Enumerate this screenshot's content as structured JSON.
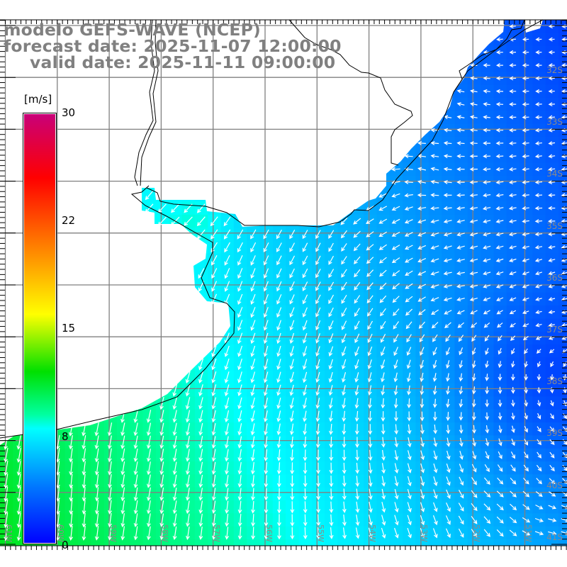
{
  "title": {
    "line1": "modelo GEFS-WAVE (NCEP)",
    "line2": "forecast date: 2025-11-07 12:00:00",
    "line3": "valid date: 2025-11-11 09:00:00"
  },
  "colorbar": {
    "unit": "[m/s]",
    "labels": [
      "30",
      "22",
      "15",
      "8",
      "0"
    ],
    "min": 0,
    "max": 30,
    "stops": [
      {
        "v": 0,
        "color": "#0000ff"
      },
      {
        "v": 4,
        "color": "#0078ff"
      },
      {
        "v": 8,
        "color": "#00ffff"
      },
      {
        "v": 9,
        "color": "#00ffa0"
      },
      {
        "v": 12,
        "color": "#00e000"
      },
      {
        "v": 16,
        "color": "#ffff00"
      },
      {
        "v": 19.5,
        "color": "#ffa000"
      },
      {
        "v": 25.5,
        "color": "#ff0000"
      },
      {
        "v": 30,
        "color": "#c8007a"
      }
    ]
  },
  "axes": {
    "lon_labels": [
      "61W",
      "60W",
      "59W",
      "58W",
      "57W",
      "56W",
      "55W",
      "54W",
      "53W",
      "52W",
      "51W"
    ],
    "lat_labels": [
      "32S",
      "33S",
      "34S",
      "35S",
      "36S",
      "37S",
      "38S",
      "39S",
      "40S",
      "41S"
    ]
  },
  "colors": {
    "land": "#ffffff",
    "grid": "#808080",
    "coast": "#000000",
    "arrow": "#ffffff",
    "label": "#808080"
  }
}
